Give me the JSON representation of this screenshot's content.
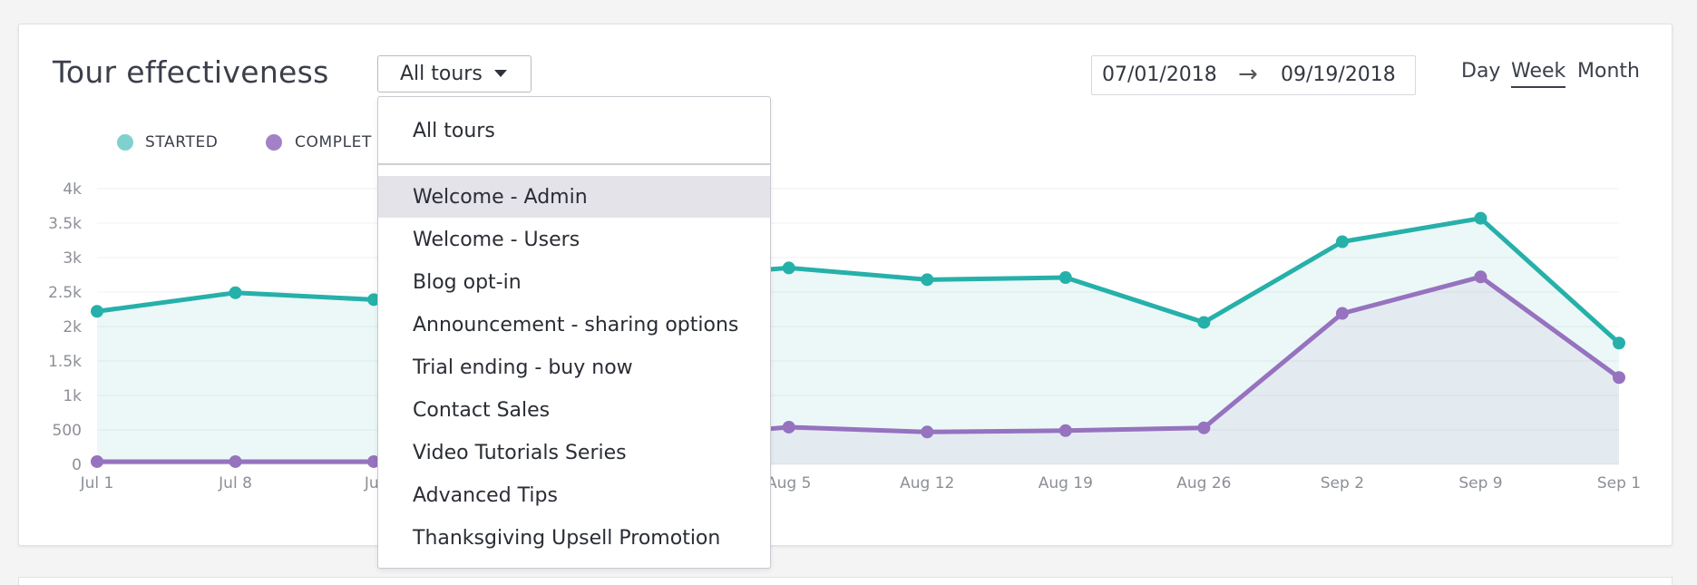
{
  "title": "Tour effectiveness",
  "tour_select": {
    "selected": "All tours"
  },
  "dropdown": {
    "top_item": "All tours",
    "items": [
      "Welcome - Admin",
      "Welcome - Users",
      "Blog opt-in",
      "Announcement - sharing options",
      "Trial ending - buy now",
      "Contact Sales",
      "Video Tutorials Series",
      "Advanced Tips",
      "Thanksgiving Upsell Promotion"
    ],
    "highlighted_index": 0
  },
  "date_range": {
    "from": "07/01/2018",
    "arrow": "→",
    "to": "09/19/2018"
  },
  "granularity": {
    "options": [
      "Day",
      "Week",
      "Month"
    ],
    "active": "Week"
  },
  "legend": [
    {
      "label": "STARTED",
      "color": "#7fd1ce"
    },
    {
      "label": "COMPLET",
      "color": "#a282c7"
    }
  ],
  "colors": {
    "started": "#26b0aa",
    "completed": "#9672bf"
  },
  "chart_data": {
    "type": "area",
    "x": [
      "Jul 1",
      "Jul 8",
      "Jul",
      "",
      "",
      "Aug 5",
      "Aug 12",
      "Aug 19",
      "Aug 26",
      "Sep 2",
      "Sep 9",
      "Sep 1"
    ],
    "yticks": [
      "4k",
      "3.5k",
      "3k",
      "2.5k",
      "2k",
      "1.5k",
      "1k",
      "500",
      "0"
    ],
    "ylim": [
      0,
      4000
    ],
    "series": [
      {
        "name": "STARTED",
        "values": [
          2220,
          2490,
          2390,
          null,
          null,
          2850,
          2680,
          2710,
          2060,
          3230,
          3570,
          1760
        ]
      },
      {
        "name": "COMPLET",
        "values": [
          40,
          40,
          40,
          null,
          null,
          540,
          470,
          490,
          530,
          2190,
          2720,
          1260
        ]
      }
    ]
  }
}
